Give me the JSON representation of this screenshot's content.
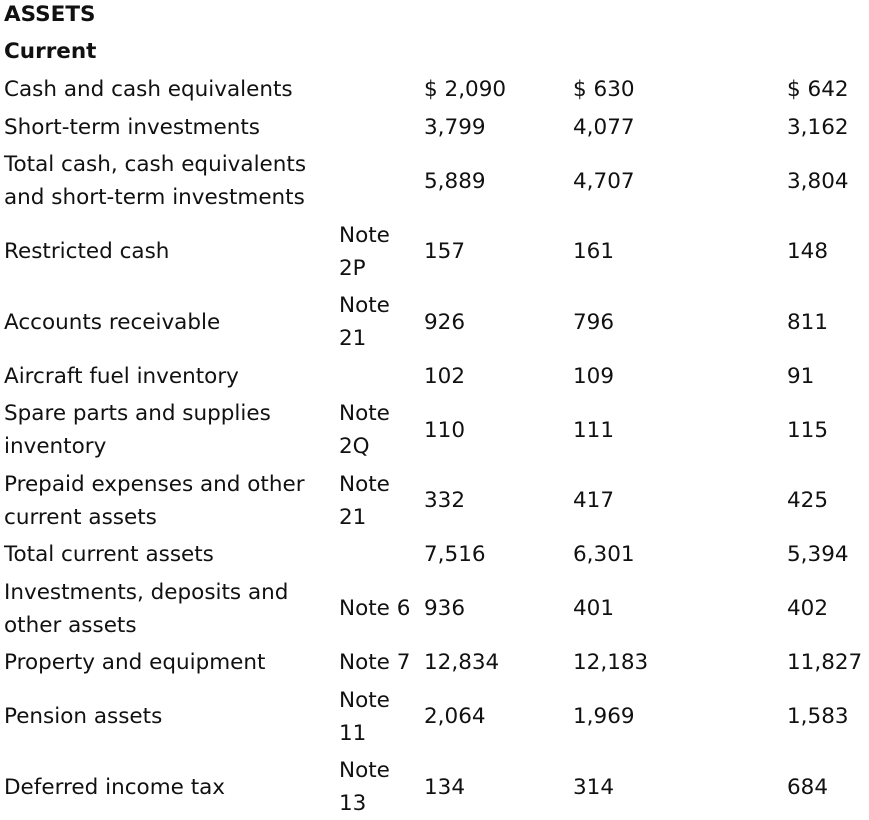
{
  "headings": {
    "assets": "ASSETS",
    "current": "Current"
  },
  "rows": [
    {
      "label": "Cash and cash equivalents",
      "note": "",
      "v1": "$ 2,090",
      "v2": "$ 630",
      "v3": "$ 642"
    },
    {
      "label": "Short-term investments",
      "note": "",
      "v1": "3,799",
      "v2": "4,077",
      "v3": "3,162"
    },
    {
      "label": "Total cash, cash equivalents and short-term investments",
      "note": "",
      "v1": "5,889",
      "v2": "4,707",
      "v3": "3,804"
    },
    {
      "label": "Restricted cash",
      "note": "Note 2P",
      "v1": "157",
      "v2": "161",
      "v3": "148"
    },
    {
      "label": "Accounts receivable",
      "note": "Note 21",
      "v1": "926",
      "v2": "796",
      "v3": "811"
    },
    {
      "label": "Aircraft fuel inventory",
      "note": "",
      "v1": "102",
      "v2": "109",
      "v3": "91"
    },
    {
      "label": "Spare parts and supplies inventory",
      "note": "Note 2Q",
      "v1": "110",
      "v2": "111",
      "v3": "115"
    },
    {
      "label": "Prepaid expenses and other current assets",
      "note": "Note 21",
      "v1": "332",
      "v2": "417",
      "v3": "425"
    },
    {
      "label": "Total current assets",
      "note": "",
      "v1": "7,516",
      "v2": "6,301",
      "v3": "5,394"
    },
    {
      "label": "Investments, deposits and other assets",
      "note": "Note 6",
      "v1": "936",
      "v2": "401",
      "v3": "402"
    },
    {
      "label": "Property and equipment",
      "note": "Note 7",
      "v1": "12,834",
      "v2": "12,183",
      "v3": "11,827"
    },
    {
      "label": "Pension assets",
      "note": "Note 11",
      "v1": "2,064",
      "v2": "1,969",
      "v3": "1,583"
    },
    {
      "label": "Deferred income tax",
      "note": "Note 13",
      "v1": "134",
      "v2": "314",
      "v3": "684"
    }
  ]
}
